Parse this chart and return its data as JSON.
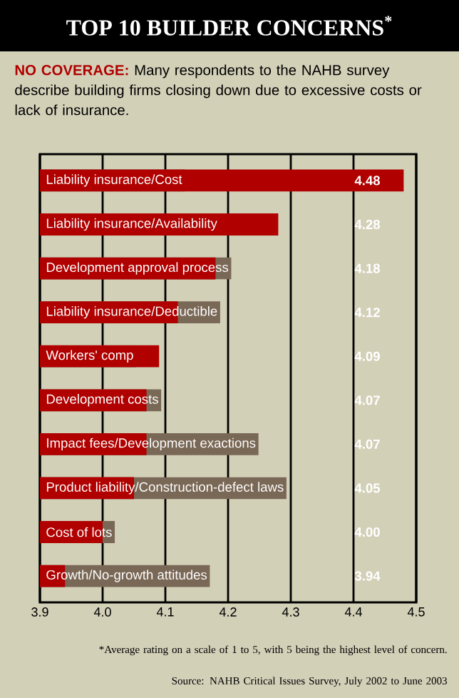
{
  "chart_data": {
    "type": "bar",
    "orientation": "horizontal",
    "title": "TOP 10 BUILDER CONCERNS$^{*}$",
    "subtitle": "**NO COVERAGE:** Many respondents to the NAHB survey describe building firms closing down due to excessive costs or lack of insurance.",
    "categories": [
      "Liability insurance/Cost",
      "Liability insurance/Availability",
      "Development approval process",
      "Liability insurance/Deductible",
      "Workers' comp",
      "Development costs",
      "Impact fees/Development exactions",
      "Product liability/Construction-defect laws",
      "Cost of lots",
      "Growth/No-growth attitudes"
    ],
    "values": [
      4.48,
      4.28,
      4.18,
      4.12,
      4.09,
      4.07,
      4.07,
      4.05,
      4.0,
      3.94
    ],
    "color": "#b00000",
    "value_labels": [
      "4.48",
      "4.28",
      "4.18",
      "4.12",
      "4.09",
      "4.07",
      "4.07",
      "4.05",
      "4.00",
      "3.94"
    ],
    "xlim": [
      3.9,
      4.5
    ],
    "xticks": [
      3.9,
      {
        "value": 4.0,
        "label": "4.0"
      },
      4.1,
      4.2,
      4.3,
      4.4,
      4.5
    ],
    "grid": "x",
    "annotations": [
      "*Average rating on a scale of 1 to 5, with 5 being the highest level of concern.",
      "Source: NAHB Critical Issues Survey, July 2002 to June 2003"
    ]
  }
}
